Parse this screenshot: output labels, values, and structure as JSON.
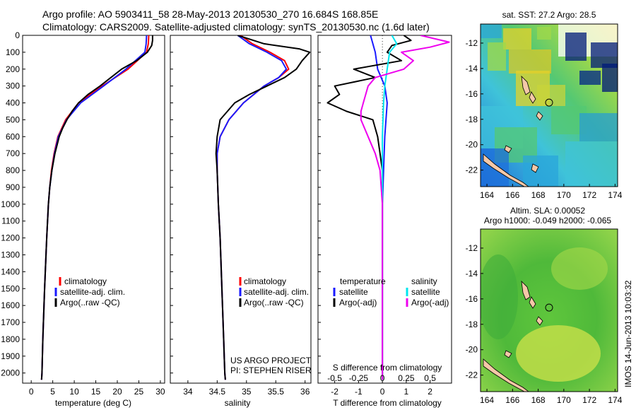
{
  "header": {
    "line1": "Argo profile: AO 5903411_58 28-May-2013 20130530_270 16.684S 168.85E",
    "line2": "Climatology: CARS2009. Satellite-adjusted climatology: synTS_20130530.nc (1.6d later)"
  },
  "colors": {
    "climatology": "#ff0000",
    "satellite": "#1a1aff",
    "argo": "#000000",
    "satellite_s": "#00e5ee",
    "argo_s": "#ee00ee"
  },
  "legend_profiles": {
    "climatology": "climatology",
    "satellite": "satellite-adj. clim.",
    "argo": "Argo(..raw -QC)"
  },
  "legend_diff": {
    "temperature": "temperature",
    "salinity": "salinity",
    "satellite": "satellite",
    "argo": "Argo(-adj)"
  },
  "credits": {
    "line1": "US ARGO PROJECT",
    "line2": "PI: STEPHEN RISER"
  },
  "stamp": "IMOS 14-Jun-2013 10:03:32",
  "chart_data": [
    {
      "type": "line",
      "xlabel": "temperature (deg C)",
      "ylabel": "",
      "xlim": [
        -2,
        31
      ],
      "ylim": [
        2060,
        0
      ],
      "xticks": [
        0,
        5,
        10,
        15,
        20,
        25,
        30
      ],
      "yticks": [
        0,
        100,
        200,
        300,
        400,
        500,
        600,
        700,
        800,
        900,
        1000,
        1100,
        1200,
        1300,
        1400,
        1500,
        1600,
        1700,
        1800,
        1900,
        2000
      ],
      "series": [
        {
          "key": "climatology",
          "depth": [
            0,
            50,
            100,
            200,
            300,
            400,
            500,
            600,
            700,
            800,
            900,
            1000,
            1200,
            1500,
            1800,
            2000,
            2040
          ],
          "values": [
            27.3,
            27.2,
            26.8,
            22.5,
            16.5,
            11.0,
            8.0,
            6.2,
            5.3,
            4.7,
            4.3,
            4.0,
            3.6,
            3.1,
            2.7,
            2.5,
            2.4
          ]
        },
        {
          "key": "satellite",
          "depth": [
            0,
            50,
            100,
            200,
            300,
            400,
            500,
            600,
            700,
            800,
            900,
            1000,
            1200,
            1500,
            1800,
            2000,
            2040
          ],
          "values": [
            26.8,
            26.7,
            26.4,
            22.0,
            16.8,
            11.5,
            8.2,
            6.3,
            5.4,
            4.8,
            4.3,
            4.0,
            3.6,
            3.1,
            2.7,
            2.5,
            2.4
          ]
        },
        {
          "key": "argo",
          "depth": [
            0,
            30,
            60,
            100,
            150,
            200,
            250,
            300,
            350,
            400,
            450,
            500,
            550,
            600,
            700,
            800,
            900,
            1000,
            1200,
            1500,
            1800,
            2000,
            2040
          ],
          "values": [
            28.2,
            28.2,
            28.0,
            27.0,
            24.5,
            21.0,
            18.5,
            16.0,
            13.2,
            11.0,
            9.5,
            8.3,
            7.3,
            6.5,
            5.5,
            4.8,
            4.3,
            4.0,
            3.6,
            3.1,
            2.7,
            2.5,
            2.4
          ]
        }
      ]
    },
    {
      "type": "line",
      "xlabel": "salinity",
      "ylabel": "",
      "xlim": [
        33.7,
        36.1
      ],
      "ylim": [
        2060,
        0
      ],
      "xticks": [
        34,
        34.5,
        35,
        35.5,
        36
      ],
      "series": [
        {
          "key": "climatology",
          "depth": [
            0,
            50,
            100,
            150,
            200,
            250,
            300,
            400,
            500,
            600,
            700,
            800,
            1000,
            1200,
            1500,
            1800,
            2000,
            2040
          ],
          "values": [
            34.9,
            35.1,
            35.4,
            35.65,
            35.72,
            35.55,
            35.3,
            34.95,
            34.7,
            34.55,
            34.5,
            34.5,
            34.52,
            34.55,
            34.58,
            34.61,
            34.63,
            34.64
          ]
        },
        {
          "key": "satellite",
          "depth": [
            0,
            50,
            100,
            150,
            200,
            250,
            300,
            400,
            500,
            600,
            700,
            800,
            1000,
            1200,
            1500,
            1800,
            2000,
            2040
          ],
          "values": [
            34.85,
            35.05,
            35.35,
            35.6,
            35.68,
            35.55,
            35.3,
            34.95,
            34.7,
            34.55,
            34.5,
            34.5,
            34.52,
            34.55,
            34.58,
            34.61,
            34.63,
            34.64
          ]
        },
        {
          "key": "argo",
          "depth": [
            0,
            50,
            80,
            100,
            150,
            200,
            250,
            300,
            350,
            400,
            500,
            600,
            700,
            800,
            1000,
            1200,
            1500,
            1800,
            2000,
            2040
          ],
          "values": [
            34.85,
            35.3,
            35.9,
            36.08,
            35.95,
            35.85,
            35.65,
            35.35,
            35.05,
            34.8,
            34.55,
            34.5,
            34.48,
            34.5,
            34.52,
            34.55,
            34.58,
            34.61,
            34.63,
            34.64
          ]
        }
      ]
    },
    {
      "type": "line",
      "xlabel": "T difference from climatology",
      "xlabel_top": "S difference from climatology",
      "xlim": [
        -2.7,
        2.9
      ],
      "ylim": [
        2060,
        0
      ],
      "xticks": [
        -2,
        -1,
        0,
        1,
        2
      ],
      "xticks_top_labels": [
        "-0.5",
        "-0.25",
        "0",
        "0.25",
        "0.5"
      ],
      "xticks_top_pos": [
        -2,
        -1,
        0,
        1,
        2
      ],
      "series": [
        {
          "key": "satellite",
          "depth": [
            0,
            100,
            200,
            300,
            400,
            600,
            1000,
            1500,
            2040
          ],
          "values": [
            -0.5,
            -0.3,
            -0.2,
            0.1,
            0.2,
            0.1,
            0.0,
            0.0,
            0.0
          ]
        },
        {
          "key": "argo",
          "depth": [
            0,
            30,
            60,
            100,
            150,
            200,
            250,
            300,
            350,
            400,
            450,
            500,
            600,
            700,
            800,
            1000,
            1500,
            2040
          ],
          "values": [
            0.9,
            1.2,
            0.4,
            0.2,
            0.8,
            -1.2,
            -0.3,
            -2.0,
            -1.8,
            -2.3,
            -1.5,
            -0.4,
            -0.2,
            -0.1,
            0.0,
            0.0,
            0.0,
            0.0
          ]
        },
        {
          "key": "satellite_s",
          "depth": [
            0,
            50,
            100,
            200,
            300,
            400,
            600,
            800,
            1200,
            1600,
            2040
          ],
          "values": [
            0.4,
            0.6,
            0.3,
            0.2,
            0.1,
            0.05,
            0.0,
            0.0,
            0.0,
            0.0,
            0.0
          ]
        },
        {
          "key": "argo_s",
          "depth": [
            0,
            40,
            70,
            100,
            150,
            200,
            250,
            300,
            350,
            400,
            450,
            500,
            600,
            700,
            800,
            1000,
            1500,
            2040
          ],
          "values": [
            1.6,
            2.8,
            2.0,
            0.8,
            1.3,
            0.9,
            -0.3,
            -0.6,
            -0.7,
            -0.8,
            -0.9,
            -0.9,
            -0.6,
            -0.3,
            -0.1,
            0.0,
            0.0,
            0.0
          ]
        }
      ]
    },
    {
      "type": "heatmap",
      "title": "sat. SST: 27.2 Argo: 28.5",
      "xticks": [
        164,
        166,
        168,
        170,
        172,
        174
      ],
      "yticks": [
        -12,
        -14,
        -16,
        -18,
        -20,
        -22
      ],
      "xlim": [
        163.5,
        174.2
      ],
      "ylim": [
        -23.3,
        -10.5
      ],
      "argo_position": [
        168.85,
        -16.684
      ]
    },
    {
      "type": "heatmap",
      "title": "Altim. SLA: 0.00052",
      "subtitle": "Argo h1000: -0.049 h2000: -0.065",
      "xticks": [
        164,
        166,
        168,
        170,
        172,
        174
      ],
      "yticks": [
        -12,
        -14,
        -16,
        -18,
        -20,
        -22
      ],
      "xlim": [
        163.5,
        174.2
      ],
      "ylim": [
        -23.3,
        -10.5
      ],
      "argo_position": [
        168.85,
        -16.684
      ]
    }
  ]
}
